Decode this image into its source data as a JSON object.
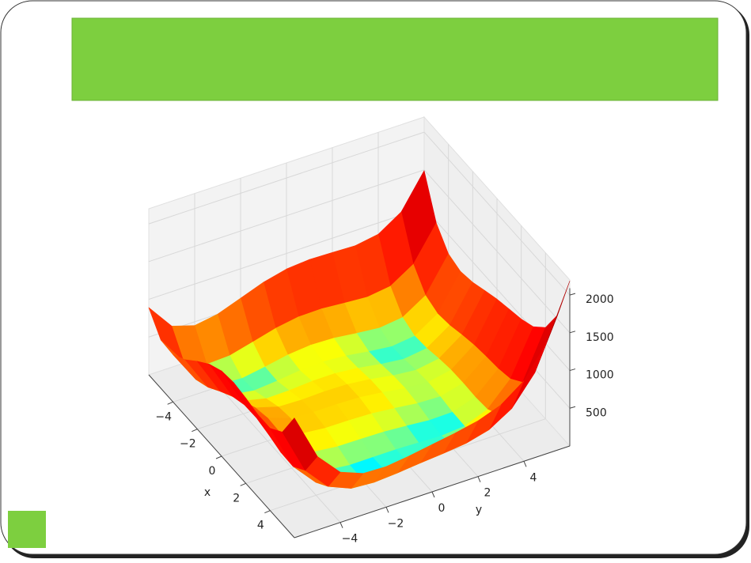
{
  "chart_data": {
    "type": "surface",
    "x": [
      -6,
      -5,
      -4,
      -3,
      -2,
      -1,
      0,
      1,
      2,
      3,
      4,
      5,
      6
    ],
    "y": [
      -6,
      -5,
      -4,
      -3,
      -2,
      -1,
      0,
      1,
      2,
      3,
      4,
      5,
      6
    ],
    "z": [
      [
        890,
        544,
        450,
        500,
        610,
        720,
        794,
        820,
        810,
        800,
        850,
        1044,
        1490
      ],
      [
        640,
        250,
        116,
        130,
        208,
        290,
        340,
        346,
        320,
        298,
        340,
        530,
        976
      ],
      [
        626,
        196,
        26,
        8,
        58,
        116,
        146,
        136,
        98,
        68,
        106,
        296,
        746
      ],
      [
        740,
        274,
        72,
        26,
        52,
        90,
        104,
        82,
        36,
        2,
        40,
        234,
        692
      ],
      [
        898,
        400,
        170,
        100,
        106,
        128,
        130,
        100,
        50,
        16,
        58,
        260,
        730
      ],
      [
        1040,
        514,
        260,
        170,
        160,
        170,
        164,
        130,
        80,
        50,
        100,
        314,
        800
      ],
      [
        1130,
        580,
        306,
        200,
        178,
        180,
        170,
        136,
        90,
        68,
        130,
        360,
        866
      ],
      [
        1156,
        586,
        296,
        178,
        148,
        146,
        136,
        106,
        68,
        58,
        136,
        386,
        916
      ],
      [
        1130,
        544,
        242,
        116,
        82,
        80,
        74,
        52,
        26,
        32,
        130,
        404,
        962
      ],
      [
        1088,
        490,
        180,
        50,
        16,
        18,
        20,
        10,
        0,
        26,
        148,
        450,
        1040
      ],
      [
        1090,
        484,
        170,
        40,
        10,
        20,
        34,
        40,
        50,
        100,
        250,
        584,
        1210
      ],
      [
        1220,
        610,
        296,
        170,
        148,
        170,
        200,
        226,
        260,
        338,
        520,
        890,
        1556
      ],
      [
        1586,
        976,
        666,
        548,
        538,
        576,
        626,
        676,
        738,
        848,
        1066,
        1476,
        2186
      ]
    ],
    "xlabel": "x",
    "ylabel": "y",
    "xlim": [
      -6,
      6
    ],
    "ylim": [
      -6,
      6
    ],
    "zlim": [
      0,
      2200
    ],
    "xticks": [
      {
        "value": -4,
        "label": "−4"
      },
      {
        "value": -2,
        "label": "−2"
      },
      0,
      2,
      4
    ],
    "yticks": [
      {
        "value": -4,
        "label": "−4"
      },
      {
        "value": -2,
        "label": "−2"
      },
      0,
      2,
      4
    ],
    "zticks": [
      500,
      1000,
      1500,
      2000
    ],
    "colormap": "jet",
    "grid": true
  }
}
